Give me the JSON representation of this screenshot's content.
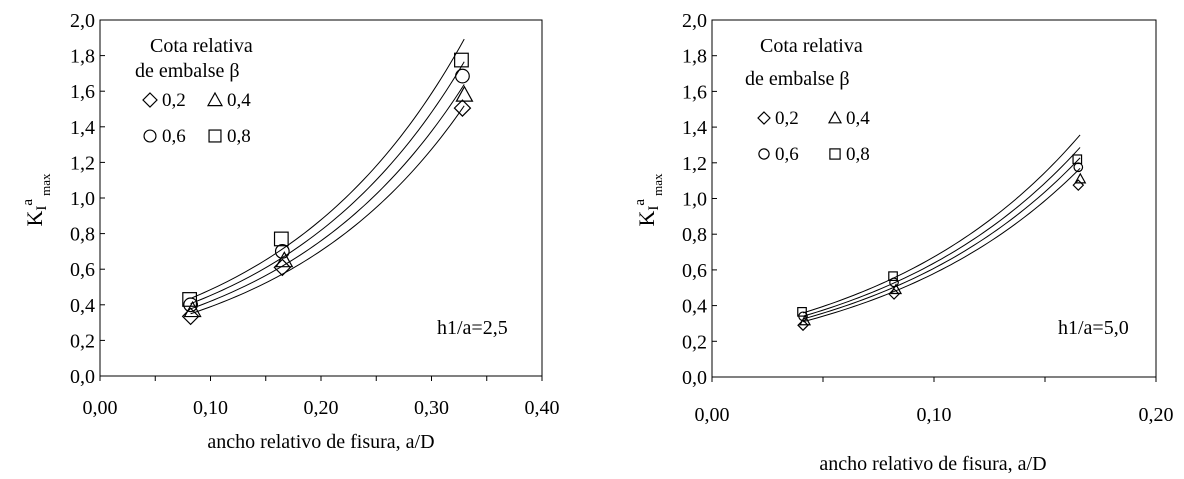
{
  "chart_data": [
    {
      "type": "scatter",
      "xlabel": "ancho relativo de fisura, a/D",
      "ylabel_base": "K",
      "ylabel_sub": "I",
      "ylabel_sup": "a",
      "ylabel_supsub": "max",
      "xlim": [
        0,
        0.4
      ],
      "ylim": [
        0,
        2.0
      ],
      "xticks": [
        "0,00",
        "0,10",
        "0,20",
        "0,30",
        "0,40"
      ],
      "yticks": [
        "0,0",
        "0,2",
        "0,4",
        "0,6",
        "0,8",
        "1,0",
        "1,2",
        "1,4",
        "1,6",
        "1,8",
        "2,0"
      ],
      "legend_title_1": "Cota relativa",
      "legend_title_2": "de embalse β",
      "annotation": "h1/a=2,5",
      "grid": false,
      "series": [
        {
          "name": "0,2",
          "marker": "diamond",
          "x": [
            0.082,
            0.165,
            0.328
          ],
          "y": [
            0.335,
            0.61,
            1.505
          ],
          "fit": {
            "a": 0.215,
            "b": 5.93
          }
        },
        {
          "name": "0,4",
          "marker": "triangle",
          "x": [
            0.082,
            0.165,
            0.328
          ],
          "y": [
            0.37,
            0.65,
            1.58
          ],
          "fit": {
            "a": 0.232,
            "b": 5.93
          }
        },
        {
          "name": "0,6",
          "marker": "circle",
          "x": [
            0.082,
            0.165,
            0.328
          ],
          "y": [
            0.4,
            0.7,
            1.685
          ],
          "fit": {
            "a": 0.25,
            "b": 5.93
          }
        },
        {
          "name": "0,8",
          "marker": "square",
          "x": [
            0.082,
            0.165,
            0.328
          ],
          "y": [
            0.43,
            0.77,
            1.775
          ],
          "fit": {
            "a": 0.268,
            "b": 5.93
          }
        }
      ]
    },
    {
      "type": "scatter",
      "xlabel": "ancho relativo de fisura, a/D",
      "ylabel_base": "K",
      "ylabel_sub": "I",
      "ylabel_sup": "a",
      "ylabel_supsub": "max",
      "xlim": [
        0,
        0.2
      ],
      "ylim": [
        0,
        2.0
      ],
      "xticks": [
        "0,00",
        "0,10",
        "0,20"
      ],
      "yticks": [
        "0,0",
        "0,2",
        "0,4",
        "0,6",
        "0,8",
        "1,0",
        "1,2",
        "1,4",
        "1,6",
        "1,8",
        "2,0"
      ],
      "legend_title_1": "Cota relativa",
      "legend_title_2": "de embalse β",
      "annotation": "h1/a=5,0",
      "grid": false,
      "series": [
        {
          "name": "0,2",
          "marker": "diamond",
          "x": [
            0.041,
            0.082,
            0.165
          ],
          "y": [
            0.29,
            0.465,
            1.075
          ],
          "fit": {
            "a": 0.2,
            "b": 10.65
          }
        },
        {
          "name": "0,4",
          "marker": "triangle",
          "x": [
            0.041,
            0.082,
            0.165
          ],
          "y": [
            0.315,
            0.49,
            1.11
          ],
          "fit": {
            "a": 0.21,
            "b": 10.65
          }
        },
        {
          "name": "0,6",
          "marker": "circle",
          "x": [
            0.041,
            0.082,
            0.165
          ],
          "y": [
            0.34,
            0.53,
            1.175
          ],
          "fit": {
            "a": 0.22,
            "b": 10.65
          }
        },
        {
          "name": "0,8",
          "marker": "square",
          "x": [
            0.041,
            0.082,
            0.165
          ],
          "y": [
            0.365,
            0.565,
            1.22
          ],
          "fit": {
            "a": 0.232,
            "b": 10.65
          }
        }
      ]
    }
  ]
}
